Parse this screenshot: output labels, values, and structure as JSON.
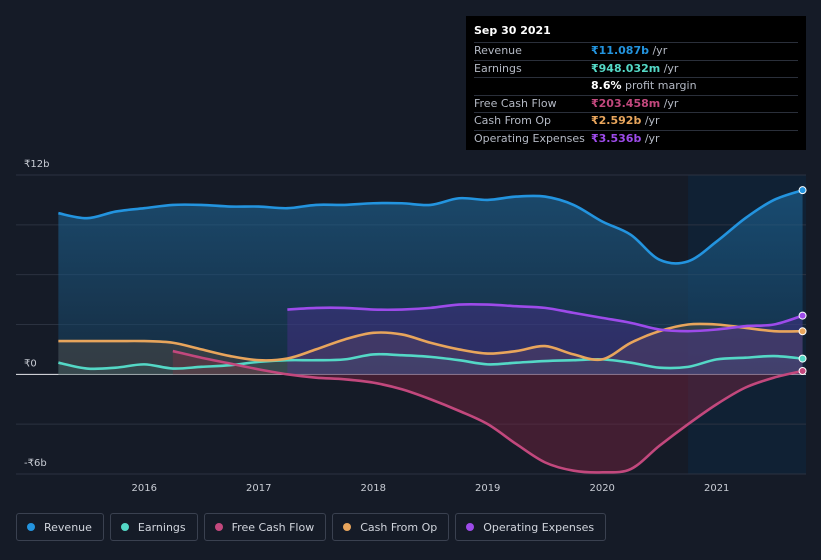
{
  "tooltip": {
    "date": "Sep 30 2021",
    "rows": [
      {
        "label": "Revenue",
        "value": "₹11.087b",
        "unit": " /yr",
        "color": "#2394df"
      },
      {
        "label": "Earnings",
        "value": "₹948.032m",
        "unit": " /yr",
        "color": "#54d8c6"
      },
      {
        "label": "",
        "value": "8.6%",
        "unit": " profit margin",
        "color": "#ffffff"
      },
      {
        "label": "Free Cash Flow",
        "value": "₹203.458m",
        "unit": " /yr",
        "color": "#c2487d"
      },
      {
        "label": "Cash From Op",
        "value": "₹2.592b",
        "unit": " /yr",
        "color": "#e8a55c"
      },
      {
        "label": "Operating Expenses",
        "value": "₹3.536b",
        "unit": " /yr",
        "color": "#9d4bea"
      }
    ]
  },
  "legend": [
    {
      "label": "Revenue",
      "color": "#2394df"
    },
    {
      "label": "Earnings",
      "color": "#54d8c6"
    },
    {
      "label": "Free Cash Flow",
      "color": "#c2487d"
    },
    {
      "label": "Cash From Op",
      "color": "#e8a55c"
    },
    {
      "label": "Operating Expenses",
      "color": "#9d4bea"
    }
  ],
  "chart_data": {
    "type": "area",
    "ylim": [
      -6,
      12
    ],
    "ytick_labels": [
      {
        "value": 12,
        "label": "₹12b"
      },
      {
        "value": 0,
        "label": "₹0"
      },
      {
        "value": -6,
        "label": "-₹6b"
      }
    ],
    "xtick_labels": [
      "2016",
      "2017",
      "2018",
      "2019",
      "2020",
      "2021"
    ],
    "xticks": [
      2016,
      2017,
      2018,
      2019,
      2020,
      2021
    ],
    "xlim": [
      2014.88,
      2021.78
    ],
    "highlight_start": 2020.75,
    "grid": true,
    "series": [
      {
        "name": "Revenue",
        "color": "#2394df",
        "x": [
          2015.25,
          2015.5,
          2015.75,
          2016.0,
          2016.25,
          2016.5,
          2016.75,
          2017.0,
          2017.25,
          2017.5,
          2017.75,
          2018.0,
          2018.25,
          2018.5,
          2018.75,
          2019.0,
          2019.25,
          2019.5,
          2019.75,
          2020.0,
          2020.25,
          2020.5,
          2020.75,
          2021.0,
          2021.25,
          2021.5,
          2021.75
        ],
        "y": [
          9.7,
          9.4,
          9.8,
          10.0,
          10.2,
          10.2,
          10.1,
          10.1,
          10.0,
          10.2,
          10.2,
          10.3,
          10.3,
          10.2,
          10.6,
          10.5,
          10.7,
          10.7,
          10.2,
          9.2,
          8.4,
          6.9,
          6.8,
          8.0,
          9.4,
          10.5,
          11.087
        ]
      },
      {
        "name": "Earnings",
        "color": "#54d8c6",
        "x": [
          2015.25,
          2015.5,
          2015.75,
          2016.0,
          2016.25,
          2016.5,
          2016.75,
          2017.0,
          2017.25,
          2017.5,
          2017.75,
          2018.0,
          2018.25,
          2018.5,
          2018.75,
          2019.0,
          2019.25,
          2019.5,
          2019.75,
          2020.0,
          2020.25,
          2020.5,
          2020.75,
          2021.0,
          2021.25,
          2021.5,
          2021.75
        ],
        "y": [
          0.7,
          0.35,
          0.4,
          0.6,
          0.35,
          0.45,
          0.55,
          0.75,
          0.85,
          0.85,
          0.9,
          1.2,
          1.15,
          1.05,
          0.85,
          0.6,
          0.7,
          0.8,
          0.85,
          0.9,
          0.7,
          0.4,
          0.45,
          0.9,
          1.0,
          1.1,
          0.948
        ]
      },
      {
        "name": "Free Cash Flow",
        "color": "#c2487d",
        "x": [
          2016.25,
          2016.5,
          2016.75,
          2017.0,
          2017.25,
          2017.5,
          2017.75,
          2018.0,
          2018.25,
          2018.5,
          2018.75,
          2019.0,
          2019.25,
          2019.5,
          2019.75,
          2020.0,
          2020.25,
          2020.5,
          2020.75,
          2021.0,
          2021.25,
          2021.5,
          2021.75
        ],
        "y": [
          1.4,
          1.0,
          0.65,
          0.3,
          0.0,
          -0.2,
          -0.3,
          -0.5,
          -0.9,
          -1.5,
          -2.2,
          -3.0,
          -4.2,
          -5.3,
          -5.8,
          -5.9,
          -5.7,
          -4.3,
          -3.0,
          -1.8,
          -0.8,
          -0.2,
          0.203
        ]
      },
      {
        "name": "Cash From Op",
        "color": "#e8a55c",
        "x": [
          2015.25,
          2015.5,
          2015.75,
          2016.0,
          2016.25,
          2016.5,
          2016.75,
          2017.0,
          2017.25,
          2017.5,
          2017.75,
          2018.0,
          2018.25,
          2018.5,
          2018.75,
          2019.0,
          2019.25,
          2019.5,
          2019.75,
          2020.0,
          2020.25,
          2020.5,
          2020.75,
          2021.0,
          2021.25,
          2021.5,
          2021.75
        ],
        "y": [
          2.0,
          2.0,
          2.0,
          2.0,
          1.9,
          1.5,
          1.1,
          0.85,
          0.95,
          1.5,
          2.1,
          2.5,
          2.4,
          1.9,
          1.5,
          1.25,
          1.4,
          1.7,
          1.2,
          0.9,
          1.9,
          2.6,
          3.0,
          3.0,
          2.8,
          2.6,
          2.592
        ]
      },
      {
        "name": "Operating Expenses",
        "color": "#9d4bea",
        "x": [
          2017.25,
          2017.5,
          2017.75,
          2018.0,
          2018.25,
          2018.5,
          2018.75,
          2019.0,
          2019.25,
          2019.5,
          2019.75,
          2020.0,
          2020.25,
          2020.5,
          2020.75,
          2021.0,
          2021.25,
          2021.5,
          2021.75
        ],
        "y": [
          3.9,
          4.0,
          4.0,
          3.9,
          3.9,
          4.0,
          4.2,
          4.2,
          4.1,
          4.0,
          3.7,
          3.4,
          3.1,
          2.7,
          2.6,
          2.7,
          2.9,
          3.0,
          3.536
        ]
      }
    ]
  }
}
